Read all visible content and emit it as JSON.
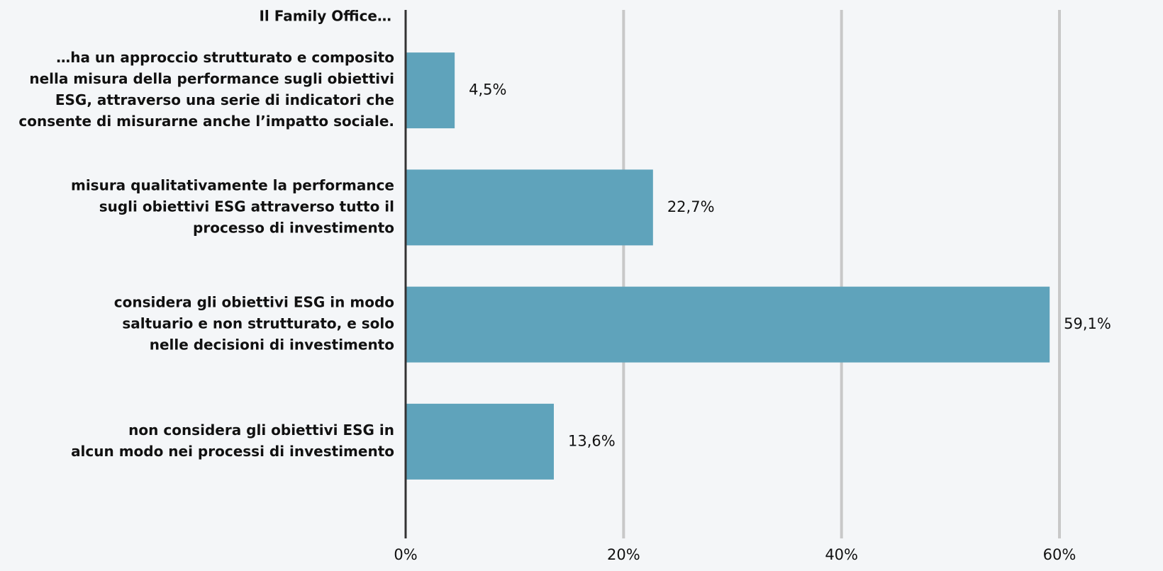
{
  "chart_data": {
    "type": "barh",
    "title": "Il Family Office…",
    "categories": [
      [
        "…ha un approccio strutturato e composito",
        "nella misura della performance sugli obiettivi",
        "ESG, attraverso una serie di indicatori che",
        "consente di misurarne anche l’impatto sociale."
      ],
      [
        "misura qualitativamente la performance",
        "sugli obiettivi ESG attraverso tutto il",
        "processo di investimento"
      ],
      [
        "considera gli obiettivi ESG in modo",
        "saltuario e non strutturato, e solo",
        "nelle decisioni di investimento"
      ],
      [
        "non considera gli obiettivi ESG in",
        "alcun modo nei processi di investimento"
      ]
    ],
    "values": [
      4.5,
      22.7,
      59.1,
      13.6
    ],
    "value_labels": [
      "4,5%",
      "22,7%",
      "59,1%",
      "13,6%"
    ],
    "color": "#5fa3bb",
    "xlim": [
      0,
      60
    ],
    "xticks": [
      {
        "value": 0,
        "label": "0%"
      },
      {
        "value": 20,
        "label": "20%"
      },
      {
        "value": 40,
        "label": "40%"
      },
      {
        "value": 60,
        "label": "60%"
      }
    ],
    "grid": true
  }
}
